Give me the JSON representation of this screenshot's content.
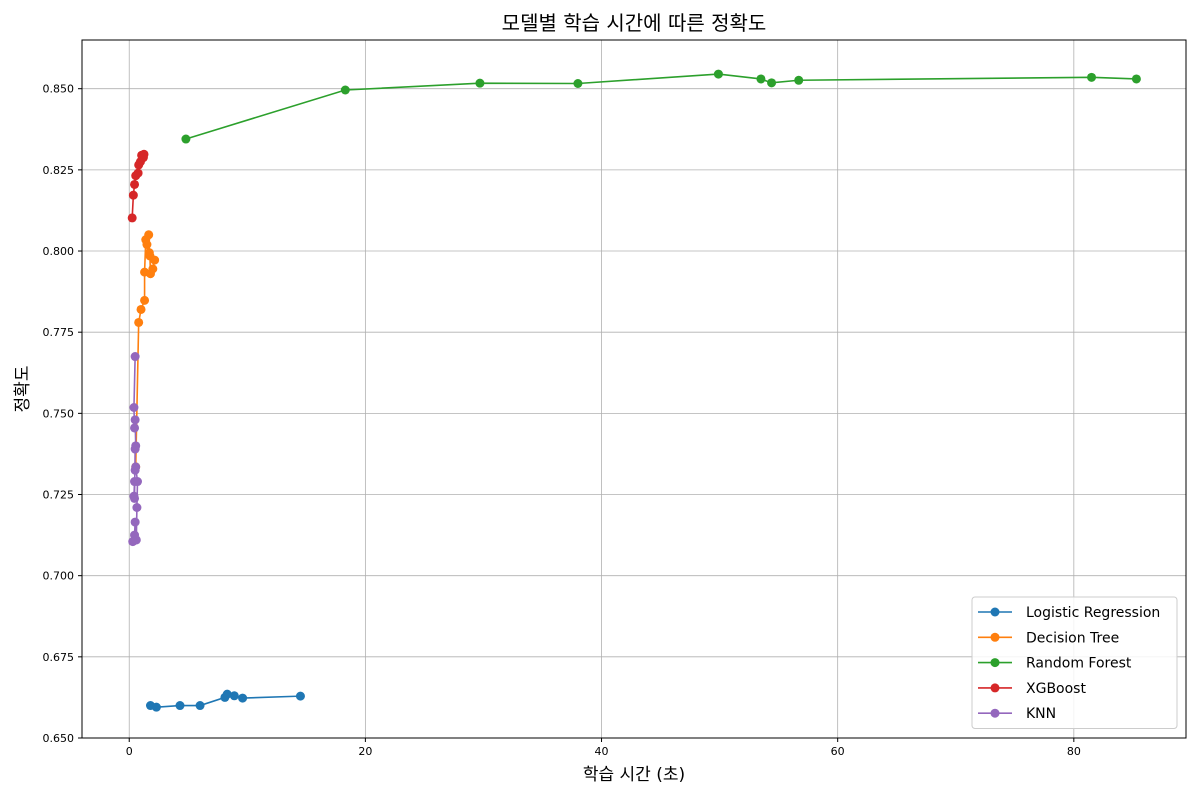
{
  "chart_data": {
    "type": "line",
    "title": "모델별 학습 시간에 따른 정확도",
    "xlabel": "학습 시간 (초)",
    "ylabel": "정확도",
    "xlim": [
      -4,
      89.5
    ],
    "ylim": [
      0.65,
      0.865
    ],
    "x_ticks": [
      0,
      20,
      40,
      60,
      80
    ],
    "x_tick_labels": [
      "0",
      "20",
      "40",
      "60",
      "80"
    ],
    "y_ticks": [
      0.65,
      0.675,
      0.7,
      0.725,
      0.75,
      0.775,
      0.8,
      0.825,
      0.85
    ],
    "y_tick_labels": [
      "0.650",
      "0.675",
      "0.700",
      "0.725",
      "0.750",
      "0.775",
      "0.800",
      "0.825",
      "0.850"
    ],
    "grid": true,
    "legend_position": "bottom-right",
    "marker": "circle",
    "series": [
      {
        "name": "Logistic Regression",
        "color": "#1f77b4",
        "points": [
          [
            1.8,
            0.66
          ],
          [
            2.3,
            0.6595
          ],
          [
            4.3,
            0.66
          ],
          [
            6.0,
            0.66
          ],
          [
            8.1,
            0.6625
          ],
          [
            8.3,
            0.6635
          ],
          [
            8.9,
            0.663
          ],
          [
            9.6,
            0.6623
          ],
          [
            14.5,
            0.6629
          ]
        ]
      },
      {
        "name": "Decision Tree",
        "color": "#ff7f0e",
        "points": [
          [
            0.55,
            0.7335
          ],
          [
            0.8,
            0.778
          ],
          [
            1.0,
            0.782
          ],
          [
            1.3,
            0.7848
          ],
          [
            1.3,
            0.7935
          ],
          [
            1.4,
            0.8035
          ],
          [
            1.5,
            0.802
          ],
          [
            1.65,
            0.805
          ],
          [
            1.7,
            0.7995
          ],
          [
            1.75,
            0.7985
          ],
          [
            1.8,
            0.793
          ],
          [
            2.0,
            0.7945
          ],
          [
            2.15,
            0.7972
          ]
        ]
      },
      {
        "name": "Random Forest",
        "color": "#2ca02c",
        "points": [
          [
            4.8,
            0.8345
          ],
          [
            18.3,
            0.8496
          ],
          [
            29.7,
            0.8517
          ],
          [
            38.0,
            0.8516
          ],
          [
            49.9,
            0.8545
          ],
          [
            53.5,
            0.853
          ],
          [
            54.4,
            0.8518
          ],
          [
            56.7,
            0.8526
          ],
          [
            81.5,
            0.8535
          ],
          [
            85.3,
            0.853
          ]
        ]
      },
      {
        "name": "XGBoost",
        "color": "#d62728",
        "points": [
          [
            0.25,
            0.8102
          ],
          [
            0.35,
            0.8172
          ],
          [
            0.45,
            0.8205
          ],
          [
            0.55,
            0.8232
          ],
          [
            0.75,
            0.824
          ],
          [
            0.8,
            0.8265
          ],
          [
            0.95,
            0.8275
          ],
          [
            1.05,
            0.8295
          ],
          [
            1.2,
            0.8288
          ],
          [
            1.25,
            0.8298
          ]
        ]
      },
      {
        "name": "KNN",
        "color": "#9467bd",
        "points": [
          [
            0.3,
            0.7105
          ],
          [
            0.45,
            0.7125
          ],
          [
            0.5,
            0.7165
          ],
          [
            0.6,
            0.711
          ],
          [
            0.65,
            0.721
          ],
          [
            0.7,
            0.729
          ],
          [
            0.55,
            0.7335
          ],
          [
            0.5,
            0.7325
          ],
          [
            0.45,
            0.729
          ],
          [
            0.4,
            0.7245
          ],
          [
            0.45,
            0.7238
          ],
          [
            0.5,
            0.739
          ],
          [
            0.55,
            0.74
          ],
          [
            0.5,
            0.748
          ],
          [
            0.45,
            0.7455
          ],
          [
            0.4,
            0.7518
          ],
          [
            0.5,
            0.7675
          ]
        ]
      }
    ]
  }
}
